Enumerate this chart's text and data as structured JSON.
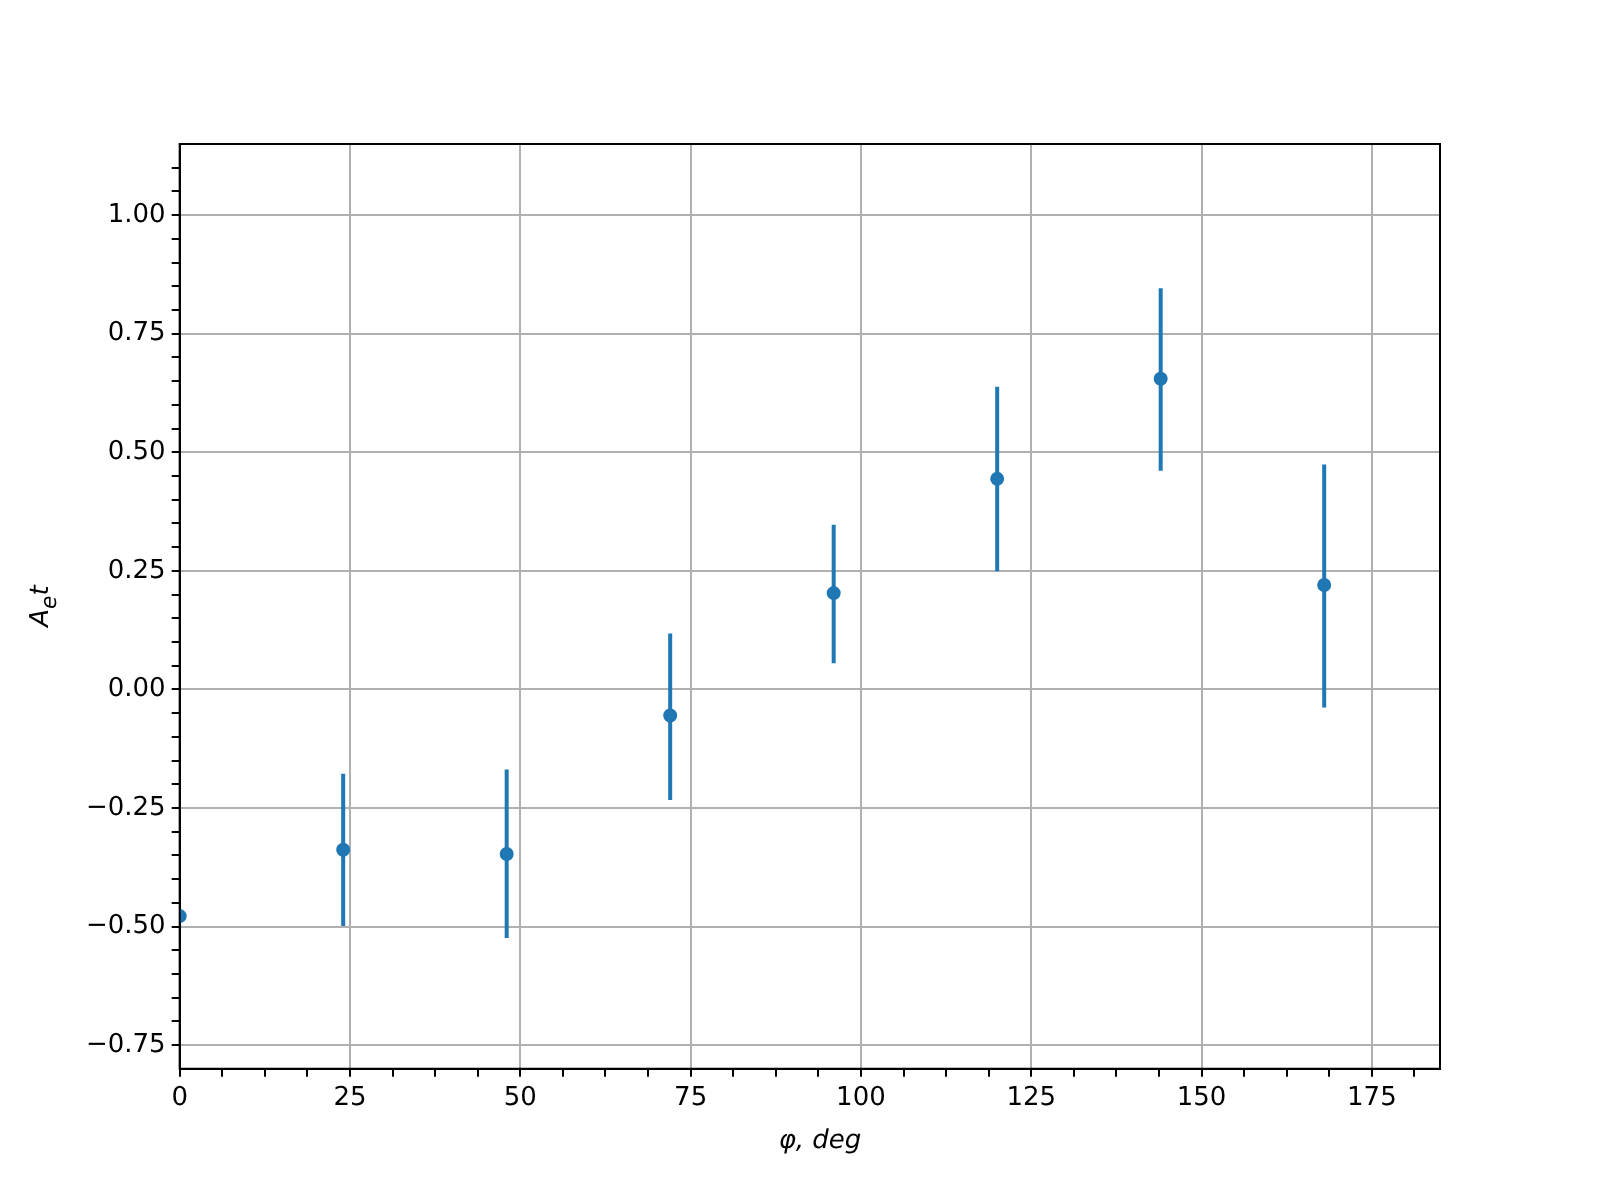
{
  "chart_data": {
    "type": "scatter",
    "xlabel": "φ, deg",
    "ylabel": "A$_{e}$t",
    "x": [
      0,
      24,
      48,
      72,
      96,
      120,
      144,
      168
    ],
    "series": [
      {
        "color": "#1f77b4",
        "values": [
          -0.478,
          -0.338,
          -0.347,
          -0.055,
          0.203,
          0.444,
          0.655,
          0.22
        ],
        "errors": [
          null,
          [
            -0.499,
            -0.178
          ],
          [
            -0.524,
            -0.169
          ],
          [
            -0.233,
            0.118
          ],
          [
            0.055,
            0.347
          ],
          [
            0.249,
            0.638
          ],
          [
            0.461,
            0.846
          ],
          [
            -0.038,
            0.474
          ]
        ]
      }
    ],
    "xlim": [
      0,
      185
    ],
    "ylim": [
      -0.8,
      1.15
    ],
    "xticks": [
      0,
      {
        "value": 6.25,
        "label": null
      },
      {
        "value": 12.5,
        "label": null
      },
      {
        "value": 18.75,
        "label": null
      },
      25,
      {
        "value": 31.25,
        "label": null
      },
      {
        "value": 37.5,
        "label": null
      },
      {
        "value": 43.75,
        "label": null
      },
      50,
      {
        "value": 56.25,
        "label": null
      },
      {
        "value": 62.5,
        "label": null
      },
      {
        "value": 68.75,
        "label": null
      },
      75,
      {
        "value": 81.25,
        "label": null
      },
      {
        "value": 87.5,
        "label": null
      },
      {
        "value": 93.75,
        "label": null
      },
      100,
      {
        "value": 106.25,
        "label": null
      },
      {
        "value": 112.5,
        "label": null
      },
      {
        "value": 118.75,
        "label": null
      },
      125,
      {
        "value": 131.25,
        "label": null
      },
      {
        "value": 137.5,
        "label": null
      },
      {
        "value": 143.75,
        "label": null
      },
      150,
      {
        "value": 156.25,
        "label": null
      },
      {
        "value": 162.5,
        "label": null
      },
      {
        "value": 168.75,
        "label": null
      },
      175,
      {
        "value": 181.25,
        "label": null
      }
    ],
    "yticks": [
      {
        "value": -0.75,
        "label": "−0.75"
      },
      {
        "value": -0.7,
        "label": null
      },
      {
        "value": -0.65,
        "label": null
      },
      {
        "value": -0.6,
        "label": null
      },
      {
        "value": -0.55,
        "label": null
      },
      {
        "value": -0.5,
        "label": "−0.50"
      },
      {
        "value": -0.45,
        "label": null
      },
      {
        "value": -0.4,
        "label": null
      },
      {
        "value": -0.35,
        "label": null
      },
      {
        "value": -0.3,
        "label": null
      },
      {
        "value": -0.25,
        "label": "−0.25"
      },
      {
        "value": -0.2,
        "label": null
      },
      {
        "value": -0.15,
        "label": null
      },
      {
        "value": -0.1,
        "label": null
      },
      {
        "value": -0.05,
        "label": null
      },
      {
        "value": 0,
        "label": "0.00"
      },
      {
        "value": 0.05,
        "label": null
      },
      {
        "value": 0.1,
        "label": null
      },
      {
        "value": 0.15,
        "label": null
      },
      {
        "value": 0.2,
        "label": null
      },
      {
        "value": 0.25,
        "label": "0.25"
      },
      {
        "value": 0.3,
        "label": null
      },
      {
        "value": 0.35,
        "label": null
      },
      {
        "value": 0.4,
        "label": null
      },
      {
        "value": 0.45,
        "label": null
      },
      {
        "value": 0.5,
        "label": "0.50"
      },
      {
        "value": 0.55,
        "label": null
      },
      {
        "value": 0.6,
        "label": null
      },
      {
        "value": 0.65,
        "label": null
      },
      {
        "value": 0.7,
        "label": null
      },
      {
        "value": 0.75,
        "label": "0.75"
      },
      {
        "value": 0.8,
        "label": null
      },
      {
        "value": 0.85,
        "label": null
      },
      {
        "value": 0.9,
        "label": null
      },
      {
        "value": 0.95,
        "label": null
      },
      {
        "value": 1,
        "label": "1.00"
      },
      {
        "value": 1.05,
        "label": null
      },
      {
        "value": 1.1,
        "label": null
      }
    ],
    "grid": true,
    "marker": "circle"
  }
}
